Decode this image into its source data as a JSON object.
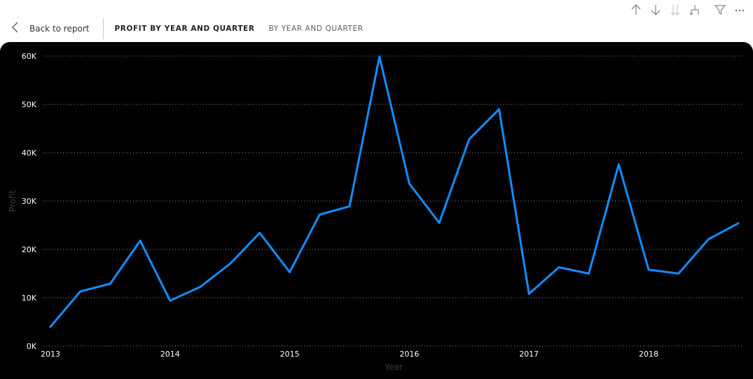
{
  "toolbar": {
    "icons": [
      "arrow-up-icon",
      "arrow-down-icon",
      "double-arrow-down-icon",
      "expand-hierarchy-icon",
      "filter-icon",
      "more-options-icon"
    ]
  },
  "nav": {
    "back_label": "Back to report",
    "breadcrumbs": [
      {
        "label": "PROFIT BY YEAR AND QUARTER",
        "active": true
      },
      {
        "label": "BY YEAR AND QUARTER",
        "active": false
      }
    ]
  },
  "colors": {
    "line": "#118DFF",
    "panel_bg": "#000000",
    "grid": "#8a8a8a"
  },
  "chart_data": {
    "type": "line",
    "title": "",
    "xlabel": "Year",
    "ylabel": "Profit",
    "x": [
      "2013 Q1",
      "2013 Q2",
      "2013 Q3",
      "2013 Q4",
      "2014 Q1",
      "2014 Q2",
      "2014 Q3",
      "2014 Q4",
      "2015 Q1",
      "2015 Q2",
      "2015 Q3",
      "2015 Q4",
      "2016 Q1",
      "2016 Q2",
      "2016 Q3",
      "2016 Q4",
      "2017 Q1",
      "2017 Q2",
      "2017 Q3",
      "2017 Q4",
      "2018 Q1",
      "2018 Q2",
      "2018 Q3",
      "2018 Q4"
    ],
    "x_tick_labels": [
      "2013",
      "2014",
      "2015",
      "2016",
      "2017",
      "2018"
    ],
    "y_tick_labels": [
      "0K",
      "10K",
      "20K",
      "30K",
      "40K",
      "50K",
      "60K"
    ],
    "ylim": [
      0,
      60000
    ],
    "grid": true,
    "series": [
      {
        "values": [
          4000,
          11300,
          12900,
          21800,
          9400,
          12200,
          17000,
          23400,
          15300,
          27200,
          28900,
          59900,
          33600,
          25500,
          42800,
          49000,
          10800,
          16300,
          15000,
          37600,
          15800,
          15000,
          22100,
          25400
        ]
      }
    ]
  }
}
